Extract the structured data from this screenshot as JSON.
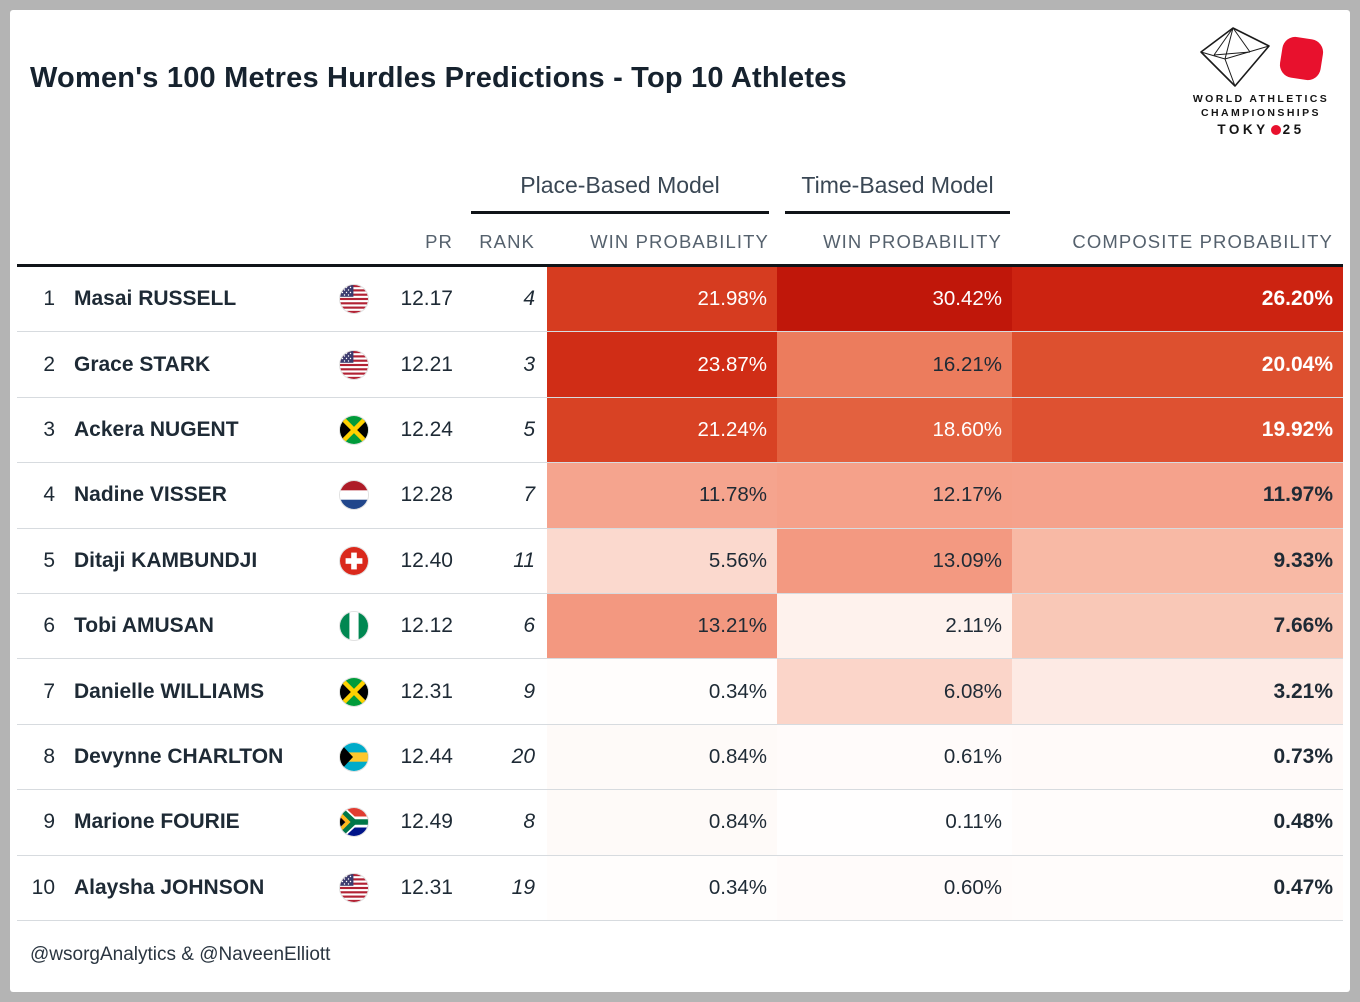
{
  "title": "Women's 100 Metres Hurdles Predictions - Top 10 Athletes",
  "logo": {
    "line1": "WORLD ATHLETICS",
    "line2": "CHAMPIONSHIPS",
    "line3_pre": "TOKY",
    "line3_post": "25",
    "accent": "#e8112d"
  },
  "footer": "@wsorgAnalytics & @NaveenElliott",
  "chart_data": {
    "type": "table",
    "title": "Women's 100 Metres Hurdles Predictions - Top 10 Athletes",
    "column_groups": [
      {
        "label": "Place-Based Model",
        "columns": [
          "place_win"
        ]
      },
      {
        "label": "Time-Based Model",
        "columns": [
          "time_win"
        ]
      }
    ],
    "columns": [
      {
        "key": "pos",
        "label": ""
      },
      {
        "key": "name",
        "label": ""
      },
      {
        "key": "flag",
        "label": ""
      },
      {
        "key": "pr",
        "label": "PR"
      },
      {
        "key": "rank",
        "label": "RANK"
      },
      {
        "key": "place_win",
        "label": "WIN PROBABILITY"
      },
      {
        "key": "time_win",
        "label": "WIN PROBABILITY"
      },
      {
        "key": "composite",
        "label": "COMPOSITE PROBABILITY"
      }
    ],
    "heatmap": {
      "applies_to": [
        "place_win",
        "time_win",
        "composite"
      ],
      "scale_max": 30.42,
      "anchors": [
        [
          0,
          "#ffffff"
        ],
        [
          3,
          "#fdece6"
        ],
        [
          6,
          "#fbd6ca"
        ],
        [
          9,
          "#f8bca8"
        ],
        [
          12,
          "#f5a28c"
        ],
        [
          15,
          "#f08a6e"
        ],
        [
          18,
          "#e66845"
        ],
        [
          21,
          "#d94425"
        ],
        [
          24,
          "#d02c15"
        ],
        [
          27,
          "#ca2010"
        ],
        [
          30.42,
          "#c0170a"
        ]
      ],
      "white_text_threshold": 17.5,
      "dark_text_color": "#1e2a35",
      "light_text_color": "#ffffff"
    },
    "rows": [
      {
        "pos": "1",
        "name": "Masai RUSSELL",
        "flag": "usa",
        "pr": "12.17",
        "rank": "4",
        "place_win": "21.98%",
        "time_win": "30.42%",
        "composite": "26.20%"
      },
      {
        "pos": "2",
        "name": "Grace STARK",
        "flag": "usa",
        "pr": "12.21",
        "rank": "3",
        "place_win": "23.87%",
        "time_win": "16.21%",
        "composite": "20.04%"
      },
      {
        "pos": "3",
        "name": "Ackera NUGENT",
        "flag": "jam",
        "pr": "12.24",
        "rank": "5",
        "place_win": "21.24%",
        "time_win": "18.60%",
        "composite": "19.92%"
      },
      {
        "pos": "4",
        "name": "Nadine VISSER",
        "flag": "ned",
        "pr": "12.28",
        "rank": "7",
        "place_win": "11.78%",
        "time_win": "12.17%",
        "composite": "11.97%"
      },
      {
        "pos": "5",
        "name": "Ditaji KAMBUNDJI",
        "flag": "sui",
        "pr": "12.40",
        "rank": "11",
        "place_win": "5.56%",
        "time_win": "13.09%",
        "composite": "9.33%"
      },
      {
        "pos": "6",
        "name": "Tobi AMUSAN",
        "flag": "ngr",
        "pr": "12.12",
        "rank": "6",
        "place_win": "13.21%",
        "time_win": "2.11%",
        "composite": "7.66%"
      },
      {
        "pos": "7",
        "name": "Danielle WILLIAMS",
        "flag": "jam",
        "pr": "12.31",
        "rank": "9",
        "place_win": "0.34%",
        "time_win": "6.08%",
        "composite": "3.21%"
      },
      {
        "pos": "8",
        "name": "Devynne CHARLTON",
        "flag": "bah",
        "pr": "12.44",
        "rank": "20",
        "place_win": "0.84%",
        "time_win": "0.61%",
        "composite": "0.73%"
      },
      {
        "pos": "9",
        "name": "Marione FOURIE",
        "flag": "rsa",
        "pr": "12.49",
        "rank": "8",
        "place_win": "0.84%",
        "time_win": "0.11%",
        "composite": "0.48%"
      },
      {
        "pos": "10",
        "name": "Alaysha JOHNSON",
        "flag": "usa",
        "pr": "12.31",
        "rank": "19",
        "place_win": "0.34%",
        "time_win": "0.60%",
        "composite": "0.47%"
      }
    ]
  }
}
